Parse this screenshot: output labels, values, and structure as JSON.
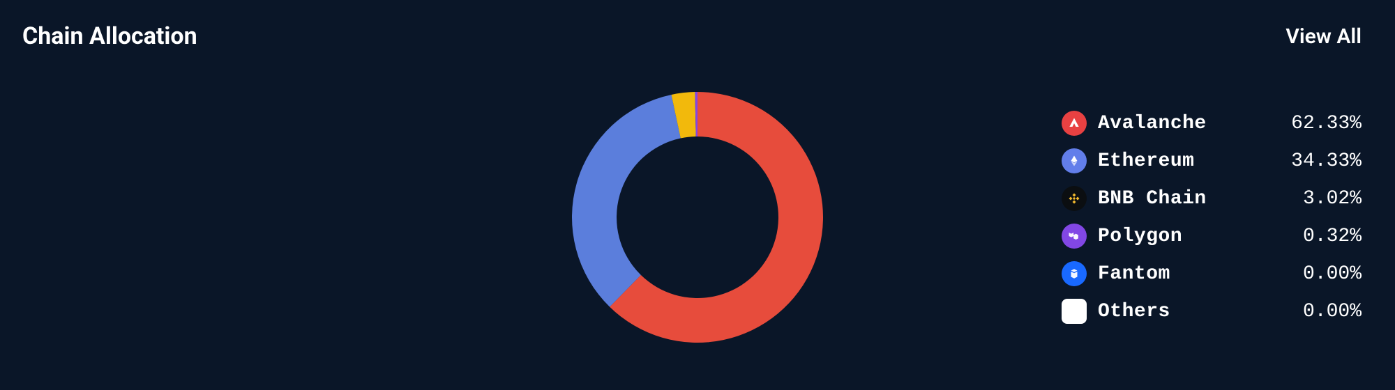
{
  "header": {
    "title": "Chain Allocation",
    "view_all": "View All"
  },
  "chart": {
    "type": "donut",
    "outer_radius": 180,
    "inner_radius": 116,
    "background_color": "#0a1628",
    "slices": [
      {
        "name": "Avalanche",
        "value": 62.33,
        "color": "#e74c3c"
      },
      {
        "name": "Ethereum",
        "value": 34.33,
        "color": "#5b7edc"
      },
      {
        "name": "BNB Chain",
        "value": 3.02,
        "color": "#f2b90c"
      },
      {
        "name": "Polygon",
        "value": 0.32,
        "color": "#8247e5"
      },
      {
        "name": "Fantom",
        "value": 0.0,
        "color": "#1969ff"
      },
      {
        "name": "Others",
        "value": 0.0,
        "color": "#ffffff"
      }
    ]
  },
  "legend": {
    "items": [
      {
        "name": "Avalanche",
        "percent": "62.33%",
        "icon_bg": "#e84142",
        "icon_glyph": "avalanche"
      },
      {
        "name": "Ethereum",
        "percent": "34.33%",
        "icon_bg": "#627eea",
        "icon_glyph": "ethereum"
      },
      {
        "name": "BNB Chain",
        "percent": "3.02%",
        "icon_bg": "#0b0e11",
        "icon_glyph": "bnb"
      },
      {
        "name": "Polygon",
        "percent": "0.32%",
        "icon_bg": "#8247e5",
        "icon_glyph": "polygon"
      },
      {
        "name": "Fantom",
        "percent": "0.00%",
        "icon_bg": "#1969ff",
        "icon_glyph": "fantom"
      },
      {
        "name": "Others",
        "percent": "0.00%",
        "icon_bg": "#ffffff",
        "icon_glyph": "square"
      }
    ]
  }
}
